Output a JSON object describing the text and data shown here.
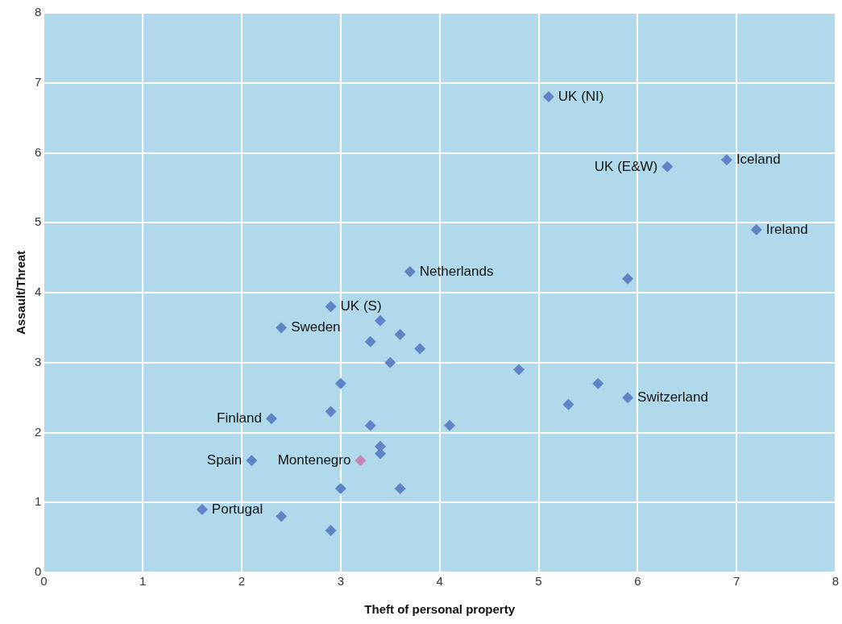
{
  "chart_data": {
    "type": "scatter",
    "xlabel": "Theft of personal property",
    "ylabel": "Assault/Threat",
    "xlim": [
      0,
      8
    ],
    "xticks": [
      0,
      1,
      2,
      3,
      4,
      5,
      6,
      7,
      8
    ],
    "ylim": [
      0,
      8
    ],
    "yticks": [
      0,
      1,
      2,
      3,
      4,
      5,
      6,
      7,
      8
    ],
    "grid": true,
    "legend": false,
    "marker": "diamond",
    "series": [
      {
        "x": [
          5.1,
          6.9,
          6.3,
          7.2,
          3.7,
          5.9,
          2.9,
          2.4,
          3.4,
          3.6,
          3.3,
          3.8,
          3.5,
          4.8,
          3.0,
          5.6,
          5.9,
          5.3,
          2.3,
          2.9,
          3.3,
          4.1,
          3.4,
          3.4,
          3.2,
          2.1,
          3.0,
          3.6,
          1.6,
          2.4,
          2.9
        ],
        "values": [
          6.8,
          5.9,
          5.8,
          4.9,
          4.3,
          4.2,
          3.8,
          3.5,
          3.6,
          3.4,
          3.3,
          3.2,
          3.0,
          2.9,
          2.7,
          2.7,
          2.5,
          2.4,
          2.2,
          2.3,
          2.1,
          2.1,
          1.8,
          1.7,
          1.6,
          1.6,
          1.2,
          1.2,
          0.9,
          0.8,
          0.6
        ],
        "colors": [
          "#5f84c6",
          "#5f84c6",
          "#5f84c6",
          "#5f84c6",
          "#5f84c6",
          "#5f84c6",
          "#5f84c6",
          "#5f84c6",
          "#5f84c6",
          "#5f84c6",
          "#5f84c6",
          "#5f84c6",
          "#5f84c6",
          "#5f84c6",
          "#5f84c6",
          "#5f84c6",
          "#5f84c6",
          "#5f84c6",
          "#5f84c6",
          "#5f84c6",
          "#5f84c6",
          "#5f84c6",
          "#5f84c6",
          "#5f84c6",
          "#c288b8",
          "#5f84c6",
          "#5f84c6",
          "#5f84c6",
          "#5f84c6",
          "#5f84c6",
          "#5f84c6"
        ]
      }
    ],
    "annotations": [
      {
        "text": "UK (NI)",
        "x": 5.1,
        "y": 6.8
      },
      {
        "text": "Iceland",
        "x": 6.9,
        "y": 5.9
      },
      {
        "text": "UK (E&W)",
        "x": 6.3,
        "y": 5.8
      },
      {
        "text": "Ireland",
        "x": 7.2,
        "y": 4.9
      },
      {
        "text": "Netherlands",
        "x": 3.7,
        "y": 4.3
      },
      {
        "text": "UK (S)",
        "x": 2.9,
        "y": 3.8
      },
      {
        "text": "Sweden",
        "x": 2.4,
        "y": 3.5
      },
      {
        "text": "Switzerland",
        "x": 5.9,
        "y": 2.5
      },
      {
        "text": "Finland",
        "x": 2.3,
        "y": 2.2
      },
      {
        "text": "Montenegro",
        "x": 3.2,
        "y": 1.6
      },
      {
        "text": "Spain",
        "x": 2.1,
        "y": 1.6
      },
      {
        "text": "Portugal",
        "x": 1.6,
        "y": 0.9
      }
    ]
  }
}
